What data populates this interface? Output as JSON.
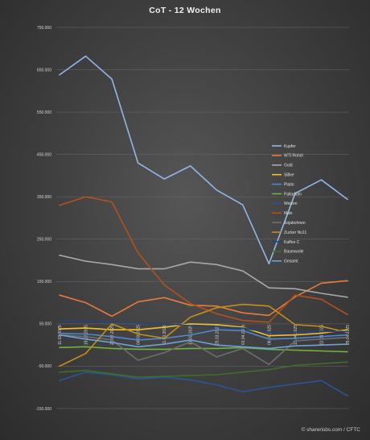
{
  "chart_data": {
    "type": "line",
    "title": "CoT - 12 Wochen",
    "xlabel": "",
    "ylabel": "",
    "ylim": [
      -150000,
      750000
    ],
    "yticks": [
      750000,
      650000,
      550000,
      450000,
      350000,
      250000,
      150000,
      50000,
      -50000,
      -150000
    ],
    "ytick_labels": [
      "750.000",
      "650.000",
      "550.000",
      "450.000",
      "350.000",
      "250.000",
      "150.000",
      "50.000",
      "-50.000",
      "-150.000"
    ],
    "grid": true,
    "legend_position": "right-inside",
    "x": [
      "11.02.2025",
      "18.02.2025",
      "25.02.2025",
      "04.03.2025",
      "11.03.2025",
      "18.03.2025",
      "25.03.2025",
      "01.04.2025",
      "08.04.2025",
      "15.04.2025",
      "22.04.2025",
      "29.04.2025"
    ],
    "series": [
      {
        "name": "Kupfer",
        "color": "#8fb8e8",
        "values": [
          638000,
          682000,
          628000,
          430000,
          392000,
          423000,
          366000,
          331000,
          192000,
          358000,
          390000,
          344000
        ]
      },
      {
        "name": "WTI Rohöl",
        "color": "#e67c3c",
        "values": [
          118000,
          100000,
          68000,
          102000,
          112000,
          94000,
          92000,
          76000,
          70000,
          114000,
          146000,
          152000
        ]
      },
      {
        "name": "Gold",
        "color": "#a8a8a8",
        "values": [
          212000,
          198000,
          190000,
          180000,
          180000,
          196000,
          190000,
          175000,
          135000,
          133000,
          122000,
          113000
        ]
      },
      {
        "name": "Silber",
        "color": "#f3c02a",
        "values": [
          38000,
          40000,
          36000,
          36000,
          42000,
          50000,
          48000,
          42000,
          22000,
          24000,
          28000,
          36000
        ]
      },
      {
        "name": "Platin",
        "color": "#4e86d2",
        "values": [
          28000,
          26000,
          20000,
          12000,
          16000,
          24000,
          36000,
          34000,
          14000,
          16000,
          20000,
          24000
        ]
      },
      {
        "name": "Palladium",
        "color": "#6db33f",
        "values": [
          -6000,
          -4000,
          -8000,
          -10000,
          -10000,
          -8000,
          -8000,
          -6000,
          -10000,
          -12000,
          -14000,
          -16000
        ]
      },
      {
        "name": "Weizen",
        "color": "#2a5597",
        "values": [
          -84000,
          -64000,
          -70000,
          -80000,
          -76000,
          -82000,
          -94000,
          -110000,
          -100000,
          -92000,
          -84000,
          -120000
        ]
      },
      {
        "name": "Mais",
        "color": "#b4501c",
        "values": [
          330000,
          350000,
          338000,
          218000,
          142000,
          98000,
          74000,
          58000,
          54000,
          118000,
          108000,
          72000
        ]
      },
      {
        "name": "Sojabohnen",
        "color": "#6e6e6e",
        "values": [
          24000,
          20000,
          12000,
          -36000,
          -18000,
          8000,
          -28000,
          -8000,
          -46000,
          10000,
          14000,
          18000
        ]
      },
      {
        "name": "Zucker No11",
        "color": "#c18f1c",
        "values": [
          -50000,
          -20000,
          50000,
          26000,
          16000,
          66000,
          88000,
          96000,
          92000,
          48000,
          44000,
          30000
        ]
      },
      {
        "name": "Kaffee C",
        "color": "#264478",
        "values": [
          58000,
          56000,
          54000,
          52000,
          50000,
          46000,
          44000,
          40000,
          30000,
          30000,
          32000,
          32000
        ]
      },
      {
        "name": "Baumwolle",
        "color": "#3e6e27",
        "values": [
          -64000,
          -60000,
          -68000,
          -76000,
          -74000,
          -72000,
          -70000,
          -64000,
          -58000,
          -48000,
          -44000,
          -40000
        ]
      },
      {
        "name": "Gesamt",
        "color": "#6fa0d6",
        "values": [
          24000,
          14000,
          6000,
          -4000,
          2000,
          12000,
          0,
          -4000,
          -8000,
          -2000,
          0,
          2000
        ]
      }
    ]
  },
  "footer": {
    "credit": "© sharerisbs.com / CFTC"
  }
}
